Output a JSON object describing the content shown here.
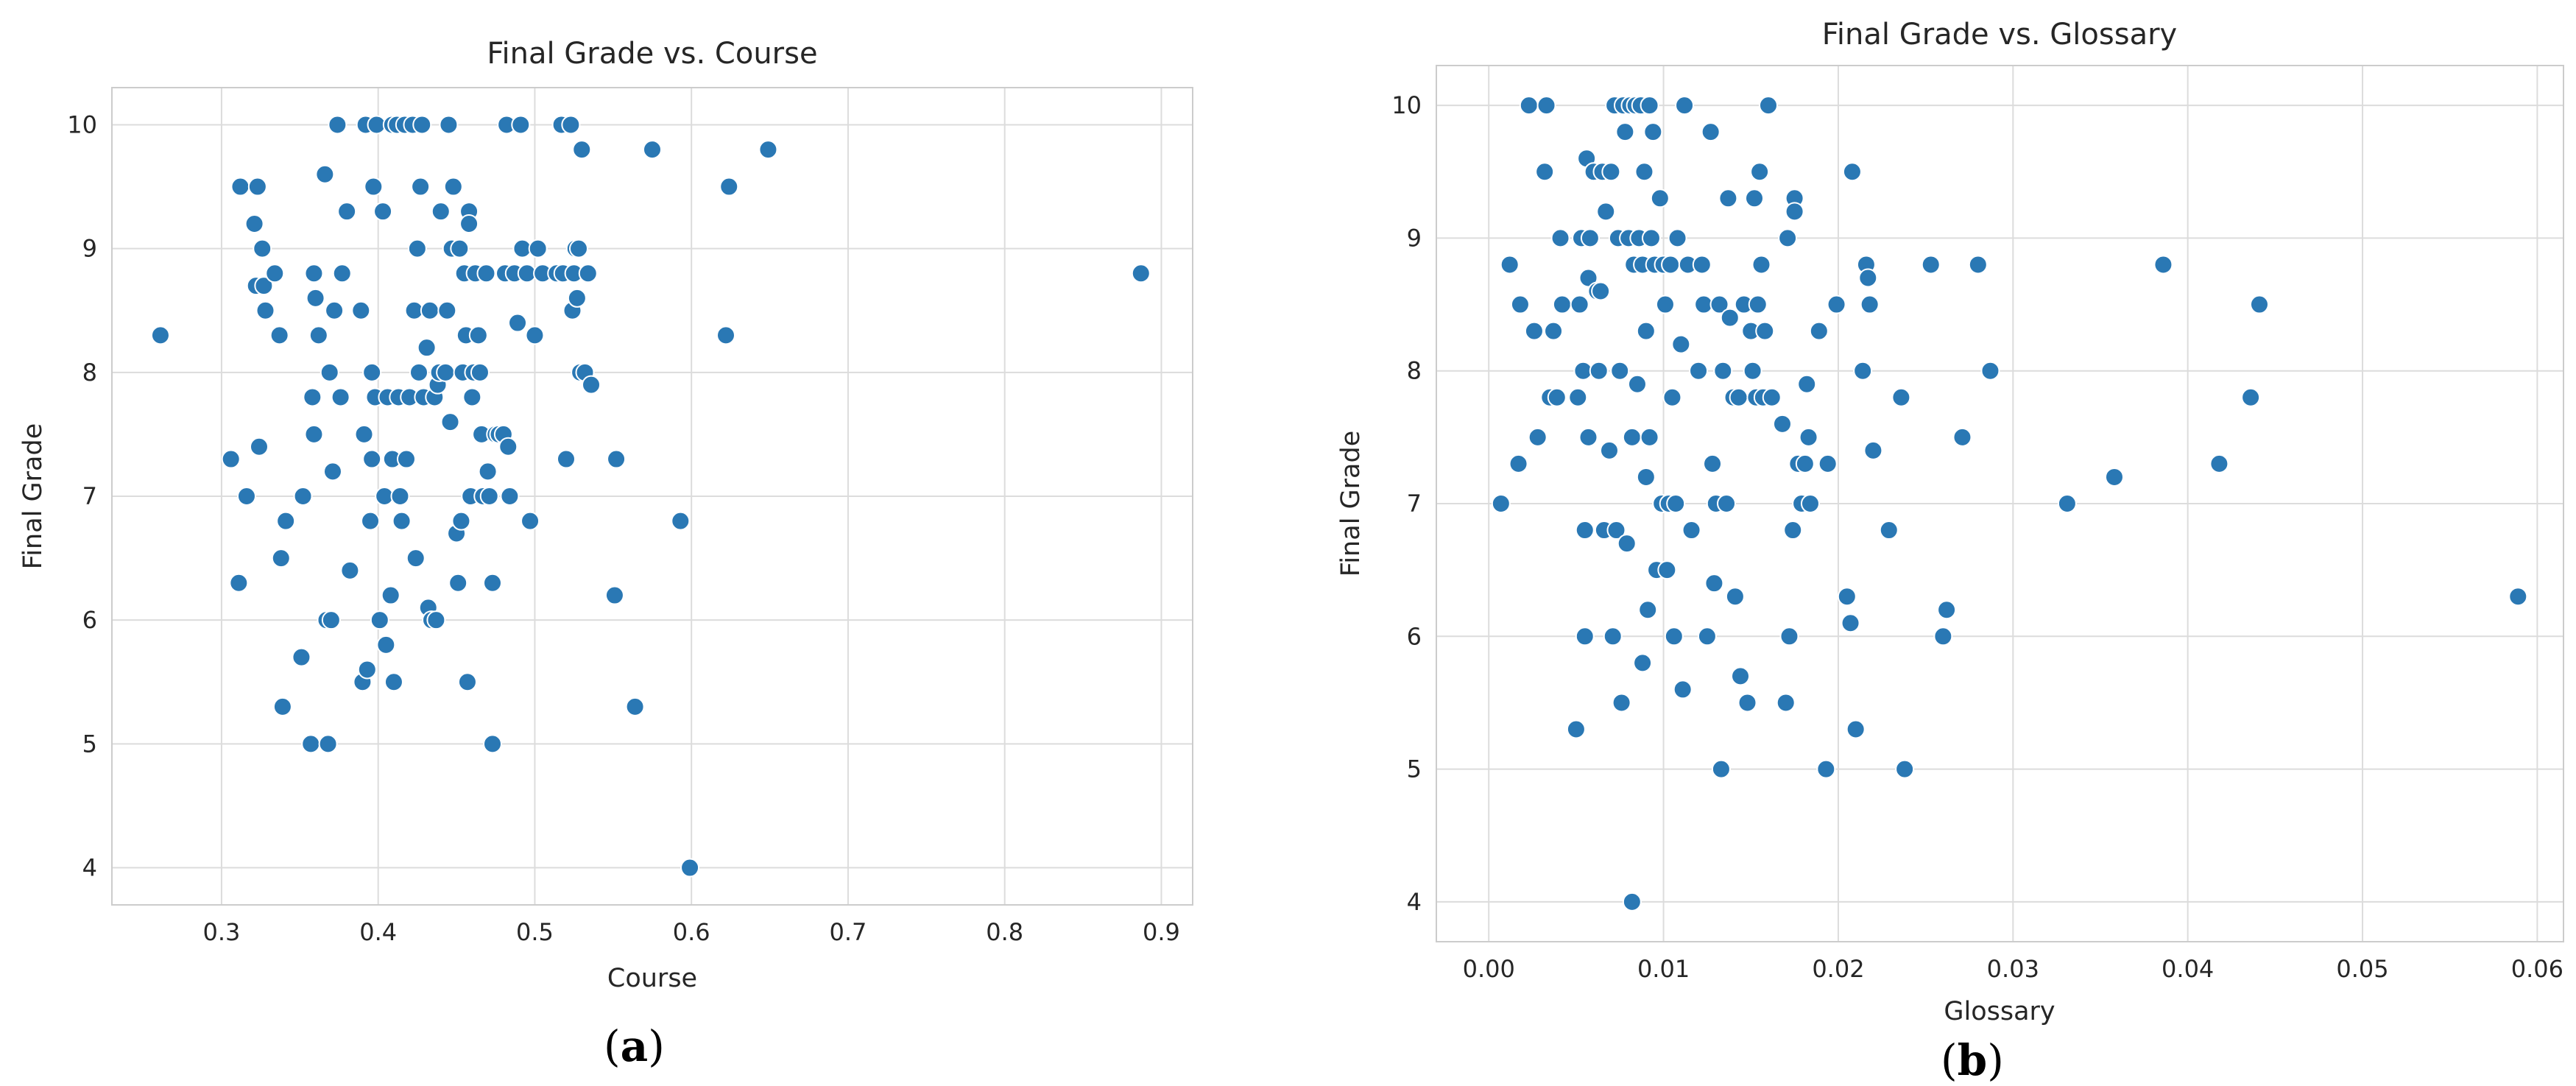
{
  "colors": {
    "point": "#2a78b4",
    "point_edge": "#ffffff",
    "grid": "#dcdcdc",
    "frame": "#cccccc"
  },
  "chart_data": [
    {
      "type": "scatter",
      "title": "Final Grade vs. Course",
      "xlabel": "Course",
      "ylabel": "Final Grade",
      "xlim": [
        0.23,
        0.92
      ],
      "ylim": [
        3.7,
        10.3
      ],
      "xticks": [
        0.3,
        0.4,
        0.5,
        0.6,
        0.7,
        0.8,
        0.9
      ],
      "xtick_labels": [
        "0.3",
        "0.4",
        "0.5",
        "0.6",
        "0.7",
        "0.8",
        "0.9"
      ],
      "yticks": [
        4,
        5,
        6,
        7,
        8,
        9,
        10
      ],
      "ytick_labels": [
        "4",
        "5",
        "6",
        "7",
        "8",
        "9",
        "10"
      ],
      "grid": true,
      "subfigure_label": {
        "open": "(",
        "letter": "a",
        "close": ")"
      },
      "points": [
        [
          0.261,
          8.3
        ],
        [
          0.306,
          7.3
        ],
        [
          0.311,
          6.3
        ],
        [
          0.312,
          9.5
        ],
        [
          0.316,
          7.0
        ],
        [
          0.321,
          9.2
        ],
        [
          0.322,
          8.7
        ],
        [
          0.323,
          9.5
        ],
        [
          0.324,
          7.4
        ],
        [
          0.326,
          9.0
        ],
        [
          0.327,
          8.7
        ],
        [
          0.328,
          8.5
        ],
        [
          0.334,
          8.8
        ],
        [
          0.337,
          8.3
        ],
        [
          0.338,
          6.5
        ],
        [
          0.339,
          5.3
        ],
        [
          0.341,
          6.8
        ],
        [
          0.351,
          5.7
        ],
        [
          0.352,
          7.0
        ],
        [
          0.357,
          5.0
        ],
        [
          0.358,
          7.8
        ],
        [
          0.359,
          8.8
        ],
        [
          0.359,
          7.5
        ],
        [
          0.36,
          8.6
        ],
        [
          0.362,
          8.3
        ],
        [
          0.366,
          9.6
        ],
        [
          0.367,
          6.0
        ],
        [
          0.368,
          5.0
        ],
        [
          0.369,
          8.0
        ],
        [
          0.37,
          6.0
        ],
        [
          0.371,
          7.2
        ],
        [
          0.372,
          8.5
        ],
        [
          0.374,
          10.0
        ],
        [
          0.376,
          7.8
        ],
        [
          0.377,
          8.8
        ],
        [
          0.38,
          9.3
        ],
        [
          0.382,
          6.4
        ],
        [
          0.389,
          8.5
        ],
        [
          0.39,
          5.5
        ],
        [
          0.391,
          7.5
        ],
        [
          0.392,
          10.0
        ],
        [
          0.393,
          5.6
        ],
        [
          0.395,
          6.8
        ],
        [
          0.396,
          8.0
        ],
        [
          0.396,
          7.3
        ],
        [
          0.397,
          9.5
        ],
        [
          0.398,
          7.8
        ],
        [
          0.399,
          10.0
        ],
        [
          0.401,
          6.0
        ],
        [
          0.403,
          9.3
        ],
        [
          0.404,
          7.0
        ],
        [
          0.405,
          5.8
        ],
        [
          0.406,
          7.8
        ],
        [
          0.408,
          6.2
        ],
        [
          0.409,
          10.0
        ],
        [
          0.409,
          7.3
        ],
        [
          0.41,
          5.5
        ],
        [
          0.412,
          10.0
        ],
        [
          0.413,
          7.8
        ],
        [
          0.414,
          7.0
        ],
        [
          0.415,
          6.8
        ],
        [
          0.417,
          10.0
        ],
        [
          0.418,
          7.3
        ],
        [
          0.42,
          7.8
        ],
        [
          0.422,
          10.0
        ],
        [
          0.423,
          8.5
        ],
        [
          0.424,
          6.5
        ],
        [
          0.425,
          9.0
        ],
        [
          0.426,
          8.0
        ],
        [
          0.427,
          9.5
        ],
        [
          0.428,
          10.0
        ],
        [
          0.429,
          7.8
        ],
        [
          0.431,
          8.2
        ],
        [
          0.432,
          6.1
        ],
        [
          0.433,
          8.5
        ],
        [
          0.434,
          6.0
        ],
        [
          0.436,
          7.8
        ],
        [
          0.437,
          6.0
        ],
        [
          0.438,
          7.9
        ],
        [
          0.439,
          8.0
        ],
        [
          0.44,
          9.3
        ],
        [
          0.443,
          8.0
        ],
        [
          0.444,
          8.5
        ],
        [
          0.445,
          10.0
        ],
        [
          0.446,
          7.6
        ],
        [
          0.447,
          9.0
        ],
        [
          0.448,
          9.5
        ],
        [
          0.45,
          6.7
        ],
        [
          0.451,
          6.3
        ],
        [
          0.452,
          9.0
        ],
        [
          0.453,
          6.8
        ],
        [
          0.454,
          8.0
        ],
        [
          0.455,
          8.8
        ],
        [
          0.456,
          8.3
        ],
        [
          0.457,
          5.5
        ],
        [
          0.458,
          9.3
        ],
        [
          0.458,
          9.2
        ],
        [
          0.459,
          7.0
        ],
        [
          0.46,
          7.8
        ],
        [
          0.461,
          8.0
        ],
        [
          0.462,
          8.8
        ],
        [
          0.464,
          8.3
        ],
        [
          0.465,
          8.0
        ],
        [
          0.466,
          7.5
        ],
        [
          0.467,
          7.0
        ],
        [
          0.469,
          8.8
        ],
        [
          0.47,
          7.2
        ],
        [
          0.471,
          7.0
        ],
        [
          0.473,
          6.3
        ],
        [
          0.473,
          5.0
        ],
        [
          0.475,
          7.5
        ],
        [
          0.477,
          7.5
        ],
        [
          0.48,
          7.5
        ],
        [
          0.481,
          8.8
        ],
        [
          0.482,
          10.0
        ],
        [
          0.483,
          7.4
        ],
        [
          0.484,
          7.0
        ],
        [
          0.487,
          8.8
        ],
        [
          0.489,
          8.4
        ],
        [
          0.491,
          10.0
        ],
        [
          0.492,
          9.0
        ],
        [
          0.495,
          8.8
        ],
        [
          0.497,
          6.8
        ],
        [
          0.5,
          8.3
        ],
        [
          0.502,
          9.0
        ],
        [
          0.505,
          8.8
        ],
        [
          0.514,
          8.8
        ],
        [
          0.517,
          10.0
        ],
        [
          0.518,
          8.8
        ],
        [
          0.52,
          7.3
        ],
        [
          0.523,
          10.0
        ],
        [
          0.524,
          8.5
        ],
        [
          0.525,
          8.8
        ],
        [
          0.526,
          9.0
        ],
        [
          0.527,
          8.6
        ],
        [
          0.528,
          9.0
        ],
        [
          0.529,
          8.0
        ],
        [
          0.53,
          9.8
        ],
        [
          0.532,
          8.0
        ],
        [
          0.534,
          8.8
        ],
        [
          0.536,
          7.9
        ],
        [
          0.551,
          6.2
        ],
        [
          0.552,
          7.3
        ],
        [
          0.564,
          5.3
        ],
        [
          0.575,
          9.8
        ],
        [
          0.593,
          6.8
        ],
        [
          0.599,
          4.0
        ],
        [
          0.622,
          8.3
        ],
        [
          0.624,
          9.5
        ],
        [
          0.649,
          9.8
        ],
        [
          0.887,
          8.8
        ]
      ]
    },
    {
      "type": "scatter",
      "title": "Final Grade vs. Glossary",
      "xlabel": "Glossary",
      "ylabel": "Final Grade",
      "xlim": [
        -0.003,
        0.0615
      ],
      "ylim": [
        3.7,
        10.3
      ],
      "xticks": [
        0.0,
        0.01,
        0.02,
        0.03,
        0.04,
        0.05,
        0.06
      ],
      "xtick_labels": [
        "0.00",
        "0.01",
        "0.02",
        "0.03",
        "0.04",
        "0.05",
        "0.06"
      ],
      "yticks": [
        4,
        5,
        6,
        7,
        8,
        9,
        10
      ],
      "ytick_labels": [
        "4",
        "5",
        "6",
        "7",
        "8",
        "9",
        "10"
      ],
      "grid": true,
      "subfigure_label": {
        "open": "(",
        "letter": "b",
        "close": ")"
      },
      "points": [
        [
          0.0007,
          7.0
        ],
        [
          0.0012,
          8.8
        ],
        [
          0.0017,
          7.3
        ],
        [
          0.0018,
          8.5
        ],
        [
          0.0023,
          10.0
        ],
        [
          0.0026,
          8.3
        ],
        [
          0.0028,
          7.5
        ],
        [
          0.0032,
          9.5
        ],
        [
          0.0033,
          10.0
        ],
        [
          0.0035,
          7.8
        ],
        [
          0.0037,
          8.3
        ],
        [
          0.0039,
          7.8
        ],
        [
          0.0041,
          9.0
        ],
        [
          0.0042,
          8.5
        ],
        [
          0.005,
          5.3
        ],
        [
          0.0051,
          7.8
        ],
        [
          0.0052,
          8.5
        ],
        [
          0.0053,
          9.0
        ],
        [
          0.0054,
          8.0
        ],
        [
          0.0055,
          6.0
        ],
        [
          0.0055,
          6.8
        ],
        [
          0.0056,
          9.6
        ],
        [
          0.0057,
          8.7
        ],
        [
          0.0057,
          7.5
        ],
        [
          0.0058,
          9.0
        ],
        [
          0.006,
          9.5
        ],
        [
          0.0062,
          8.6
        ],
        [
          0.0063,
          8.0
        ],
        [
          0.0064,
          8.6
        ],
        [
          0.0065,
          9.5
        ],
        [
          0.0066,
          6.8
        ],
        [
          0.0067,
          9.2
        ],
        [
          0.0069,
          7.4
        ],
        [
          0.007,
          9.5
        ],
        [
          0.0071,
          6.0
        ],
        [
          0.0072,
          10.0
        ],
        [
          0.0073,
          6.8
        ],
        [
          0.0074,
          9.0
        ],
        [
          0.0075,
          8.0
        ],
        [
          0.0076,
          5.5
        ],
        [
          0.0077,
          10.0
        ],
        [
          0.0078,
          9.8
        ],
        [
          0.0079,
          6.7
        ],
        [
          0.008,
          9.0
        ],
        [
          0.0081,
          10.0
        ],
        [
          0.0082,
          7.5
        ],
        [
          0.0082,
          4.0
        ],
        [
          0.0083,
          8.8
        ],
        [
          0.0084,
          10.0
        ],
        [
          0.0085,
          7.9
        ],
        [
          0.0086,
          9.0
        ],
        [
          0.0087,
          10.0
        ],
        [
          0.0088,
          5.8
        ],
        [
          0.0088,
          8.8
        ],
        [
          0.0089,
          9.5
        ],
        [
          0.009,
          7.2
        ],
        [
          0.009,
          8.3
        ],
        [
          0.0091,
          6.2
        ],
        [
          0.0092,
          10.0
        ],
        [
          0.0092,
          7.5
        ],
        [
          0.0093,
          9.0
        ],
        [
          0.0094,
          9.8
        ],
        [
          0.0095,
          8.8
        ],
        [
          0.0096,
          6.5
        ],
        [
          0.0098,
          9.3
        ],
        [
          0.0099,
          7.0
        ],
        [
          0.01,
          8.8
        ],
        [
          0.0101,
          8.5
        ],
        [
          0.0102,
          6.5
        ],
        [
          0.0103,
          7.0
        ],
        [
          0.0104,
          8.8
        ],
        [
          0.0105,
          7.8
        ],
        [
          0.0106,
          6.0
        ],
        [
          0.0107,
          7.0
        ],
        [
          0.0108,
          9.0
        ],
        [
          0.011,
          8.2
        ],
        [
          0.0111,
          5.6
        ],
        [
          0.0112,
          10.0
        ],
        [
          0.0114,
          8.8
        ],
        [
          0.0116,
          6.8
        ],
        [
          0.012,
          8.0
        ],
        [
          0.0122,
          8.8
        ],
        [
          0.0123,
          8.5
        ],
        [
          0.0125,
          6.0
        ],
        [
          0.0127,
          9.8
        ],
        [
          0.0128,
          7.3
        ],
        [
          0.0129,
          6.4
        ],
        [
          0.013,
          7.0
        ],
        [
          0.0132,
          8.5
        ],
        [
          0.0133,
          5.0
        ],
        [
          0.0134,
          8.0
        ],
        [
          0.0136,
          7.0
        ],
        [
          0.0137,
          9.3
        ],
        [
          0.0138,
          8.4
        ],
        [
          0.014,
          7.8
        ],
        [
          0.0141,
          6.3
        ],
        [
          0.0143,
          7.8
        ],
        [
          0.0144,
          5.7
        ],
        [
          0.0146,
          8.5
        ],
        [
          0.0148,
          5.5
        ],
        [
          0.015,
          8.3
        ],
        [
          0.0151,
          8.0
        ],
        [
          0.0152,
          9.3
        ],
        [
          0.0153,
          7.8
        ],
        [
          0.0154,
          8.5
        ],
        [
          0.0155,
          9.5
        ],
        [
          0.0156,
          8.8
        ],
        [
          0.0157,
          7.8
        ],
        [
          0.0158,
          8.3
        ],
        [
          0.016,
          10.0
        ],
        [
          0.0162,
          7.8
        ],
        [
          0.0168,
          7.6
        ],
        [
          0.017,
          5.5
        ],
        [
          0.0171,
          9.0
        ],
        [
          0.0172,
          6.0
        ],
        [
          0.0174,
          6.8
        ],
        [
          0.0175,
          9.3
        ],
        [
          0.0175,
          9.2
        ],
        [
          0.0177,
          7.3
        ],
        [
          0.0179,
          7.0
        ],
        [
          0.0181,
          7.3
        ],
        [
          0.0182,
          7.9
        ],
        [
          0.0183,
          7.5
        ],
        [
          0.0184,
          7.0
        ],
        [
          0.0189,
          8.3
        ],
        [
          0.0193,
          5.0
        ],
        [
          0.0194,
          7.3
        ],
        [
          0.0199,
          8.5
        ],
        [
          0.0205,
          6.3
        ],
        [
          0.0207,
          6.1
        ],
        [
          0.0208,
          9.5
        ],
        [
          0.021,
          5.3
        ],
        [
          0.0214,
          8.0
        ],
        [
          0.0216,
          8.8
        ],
        [
          0.0217,
          8.7
        ],
        [
          0.0218,
          8.5
        ],
        [
          0.022,
          7.4
        ],
        [
          0.0229,
          6.8
        ],
        [
          0.0236,
          7.8
        ],
        [
          0.0238,
          5.0
        ],
        [
          0.0253,
          8.8
        ],
        [
          0.026,
          6.0
        ],
        [
          0.0262,
          6.2
        ],
        [
          0.0271,
          7.5
        ],
        [
          0.028,
          8.8
        ],
        [
          0.0287,
          8.0
        ],
        [
          0.0331,
          7.0
        ],
        [
          0.0358,
          7.2
        ],
        [
          0.0386,
          8.8
        ],
        [
          0.0418,
          7.3
        ],
        [
          0.0436,
          7.8
        ],
        [
          0.0441,
          8.5
        ],
        [
          0.0589,
          6.3
        ]
      ]
    }
  ]
}
